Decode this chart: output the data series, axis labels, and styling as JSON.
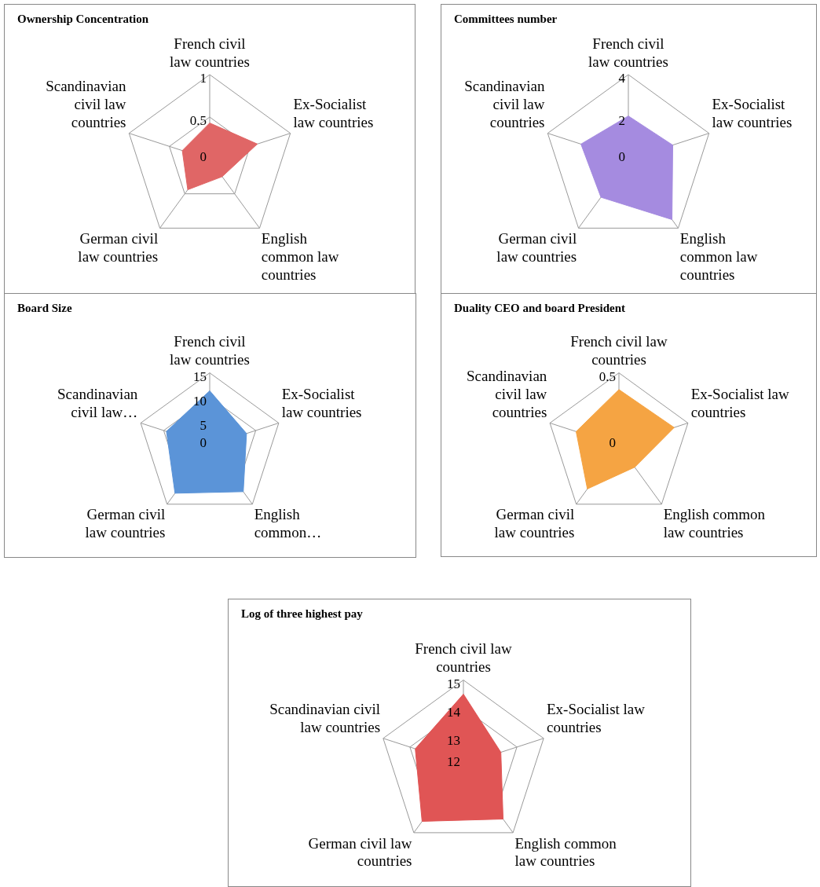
{
  "chart_data": [
    {
      "type": "radar",
      "title": "Ownership Concentration",
      "categories": [
        "French civil law countries",
        "Ex-Socialist law countries",
        "English common law countries",
        "German civil law countries",
        "Scandinavian civil law countries"
      ],
      "series": [
        {
          "color": "#e06666",
          "values": [
            0.43,
            0.59,
            0.25,
            0.44,
            0.34
          ]
        }
      ],
      "ylim": [
        0,
        1
      ],
      "yticks": [
        0,
        0.5,
        1
      ],
      "grid": true,
      "legend": false
    },
    {
      "type": "radar",
      "title": "Committees number",
      "categories": [
        "French civil law countries",
        "Ex-Socialist law countries",
        "English common law countries",
        "German civil law countries",
        "Scandinavian civil law countries"
      ],
      "series": [
        {
          "color": "#a58be0",
          "values": [
            2.05,
            2.2,
            3.5,
            2.2,
            2.35
          ]
        }
      ],
      "ylim": [
        0,
        4
      ],
      "yticks": [
        0,
        2,
        4
      ],
      "grid": true,
      "legend": false
    },
    {
      "type": "radar",
      "title": "Board Size",
      "categories": [
        "French civil law countries",
        "Ex-Socialist law countries",
        "English common…",
        "German civil law countries",
        "Scandinavian civil law…"
      ],
      "series": [
        {
          "color": "#5b94d8",
          "values": [
            11.3,
            8,
            11.8,
            12.2,
            9.4
          ]
        }
      ],
      "ylim": [
        0,
        15
      ],
      "yticks": [
        0,
        5,
        10,
        15
      ],
      "grid": true,
      "legend": false
    },
    {
      "type": "radar",
      "title": "Duality CEO and board President",
      "categories": [
        "French civil law countries",
        "Ex-Socialist law countries",
        "English common law countries",
        "German civil law countries",
        "Scandinavian civil law countries"
      ],
      "series": [
        {
          "color": "#f5a443",
          "values": [
            0.385,
            0.4,
            0.185,
            0.37,
            0.31
          ]
        }
      ],
      "ylim": [
        0,
        0.5
      ],
      "yticks": [
        0,
        0.5
      ],
      "grid": true,
      "legend": false
    },
    {
      "type": "radar",
      "title": "Log of three highest pay",
      "categories": [
        "French civil law countries",
        "Ex-Socialist law countries",
        "English common law countries",
        "German civil law countries",
        "Scandinavian civil law countries"
      ],
      "series": [
        {
          "color": "#e05555",
          "values": [
            14.5,
            13.4,
            14.4,
            14.5,
            13.8
          ]
        }
      ],
      "ylim": [
        12,
        15
      ],
      "yticks": [
        12,
        13,
        14,
        15
      ],
      "grid": true,
      "legend": false
    }
  ]
}
